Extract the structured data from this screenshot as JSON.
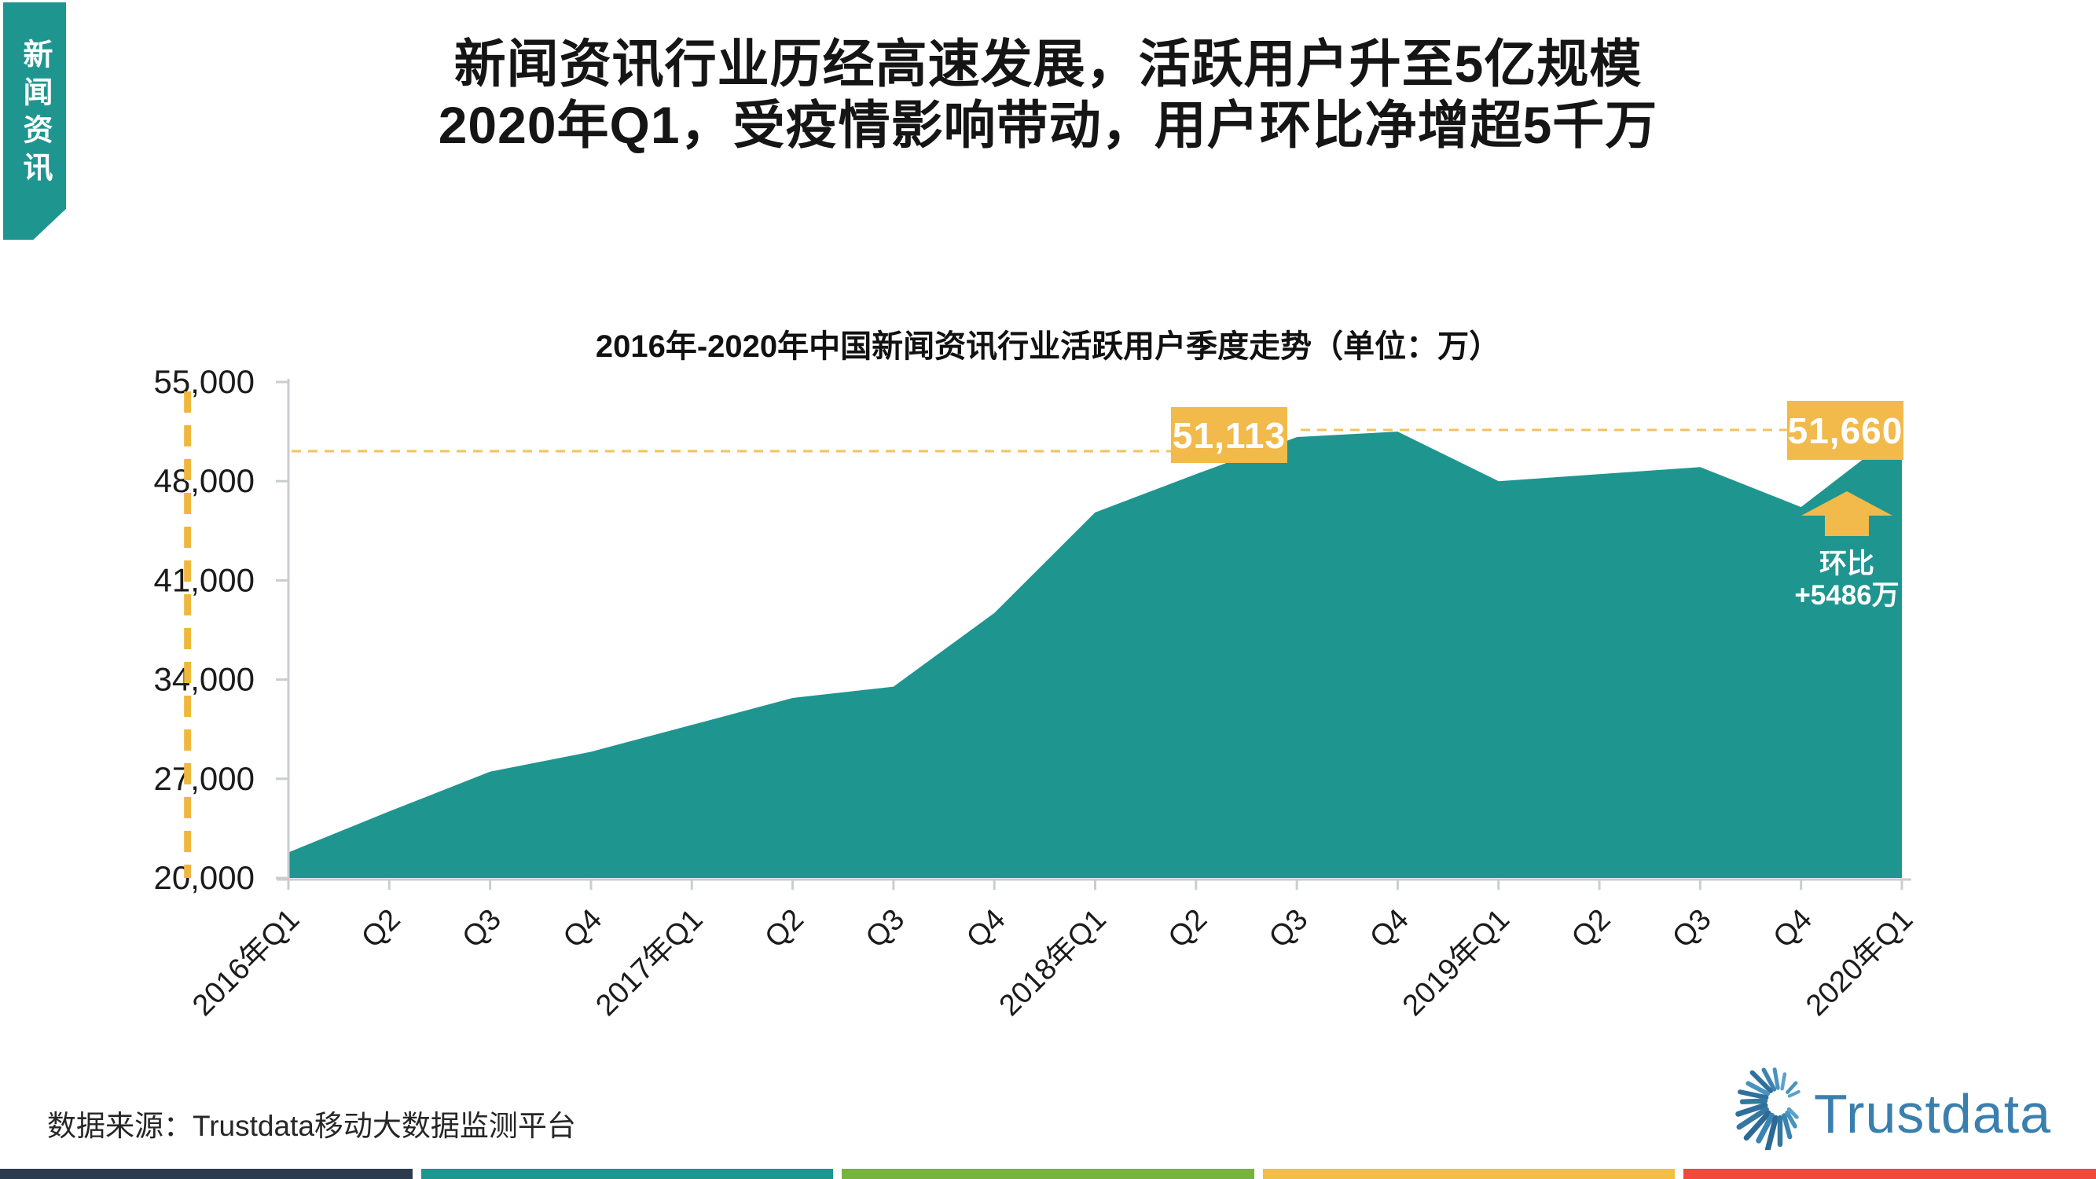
{
  "side_tab": {
    "label": "新闻资讯",
    "color": "#1F9590"
  },
  "title": {
    "line1": "新闻资讯行业历经高速发展，活跃用户升至5亿规模",
    "line2": "2020年Q1，受疫情影响带动，用户环比净增超5千万"
  },
  "chart_data": {
    "type": "area",
    "title": "2016年-2020年中国新闻资讯行业活跃用户季度走势（单位：万）",
    "unit": "万",
    "categories": [
      "2016年Q1",
      "Q2",
      "Q3",
      "Q4",
      "2017年Q1",
      "Q2",
      "Q3",
      "Q4",
      "2018年Q1",
      "Q2",
      "Q3",
      "Q4",
      "2019年Q1",
      "Q2",
      "Q3",
      "Q4",
      "2020年Q1"
    ],
    "values": [
      21800,
      24700,
      27500,
      28900,
      30800,
      32700,
      33500,
      38700,
      45800,
      48500,
      51113,
      51500,
      48000,
      48500,
      49000,
      46174,
      51660
    ],
    "ylim": [
      20000,
      55000
    ],
    "yticks": [
      20000,
      27000,
      34000,
      41000,
      48000,
      55000
    ],
    "grid": false,
    "legend": false,
    "area_color": "#1F9590",
    "axis_color": "#C9CDD1",
    "label_color": "#1B1B1B",
    "annotations": {
      "accent_color": "#F2B94B",
      "callouts": [
        {
          "label": "51,113",
          "value": 51113,
          "category": "2018年Q3"
        },
        {
          "label": "51,660",
          "value": 51660,
          "category": "2020年Q1"
        }
      ],
      "vline": {
        "category": "2018年Q3",
        "style": "dashed"
      },
      "ref_lines": [
        {
          "to_callout": "51,113",
          "value_approx": 50100
        },
        {
          "to_callout": "51,660",
          "value_approx": 51660
        }
      ],
      "qoq_note": {
        "line1": "环比",
        "line2": "+5486万"
      }
    }
  },
  "source": {
    "label": "数据来源：Trustdata移动大数据监测平台"
  },
  "logo": {
    "text": "Trustdata",
    "color": "#3A7FAE"
  },
  "footer_bars": {
    "colors": [
      "#2C3B4E",
      "#1F9590",
      "#77B33F",
      "#F2BE45",
      "#F2493B"
    ]
  }
}
